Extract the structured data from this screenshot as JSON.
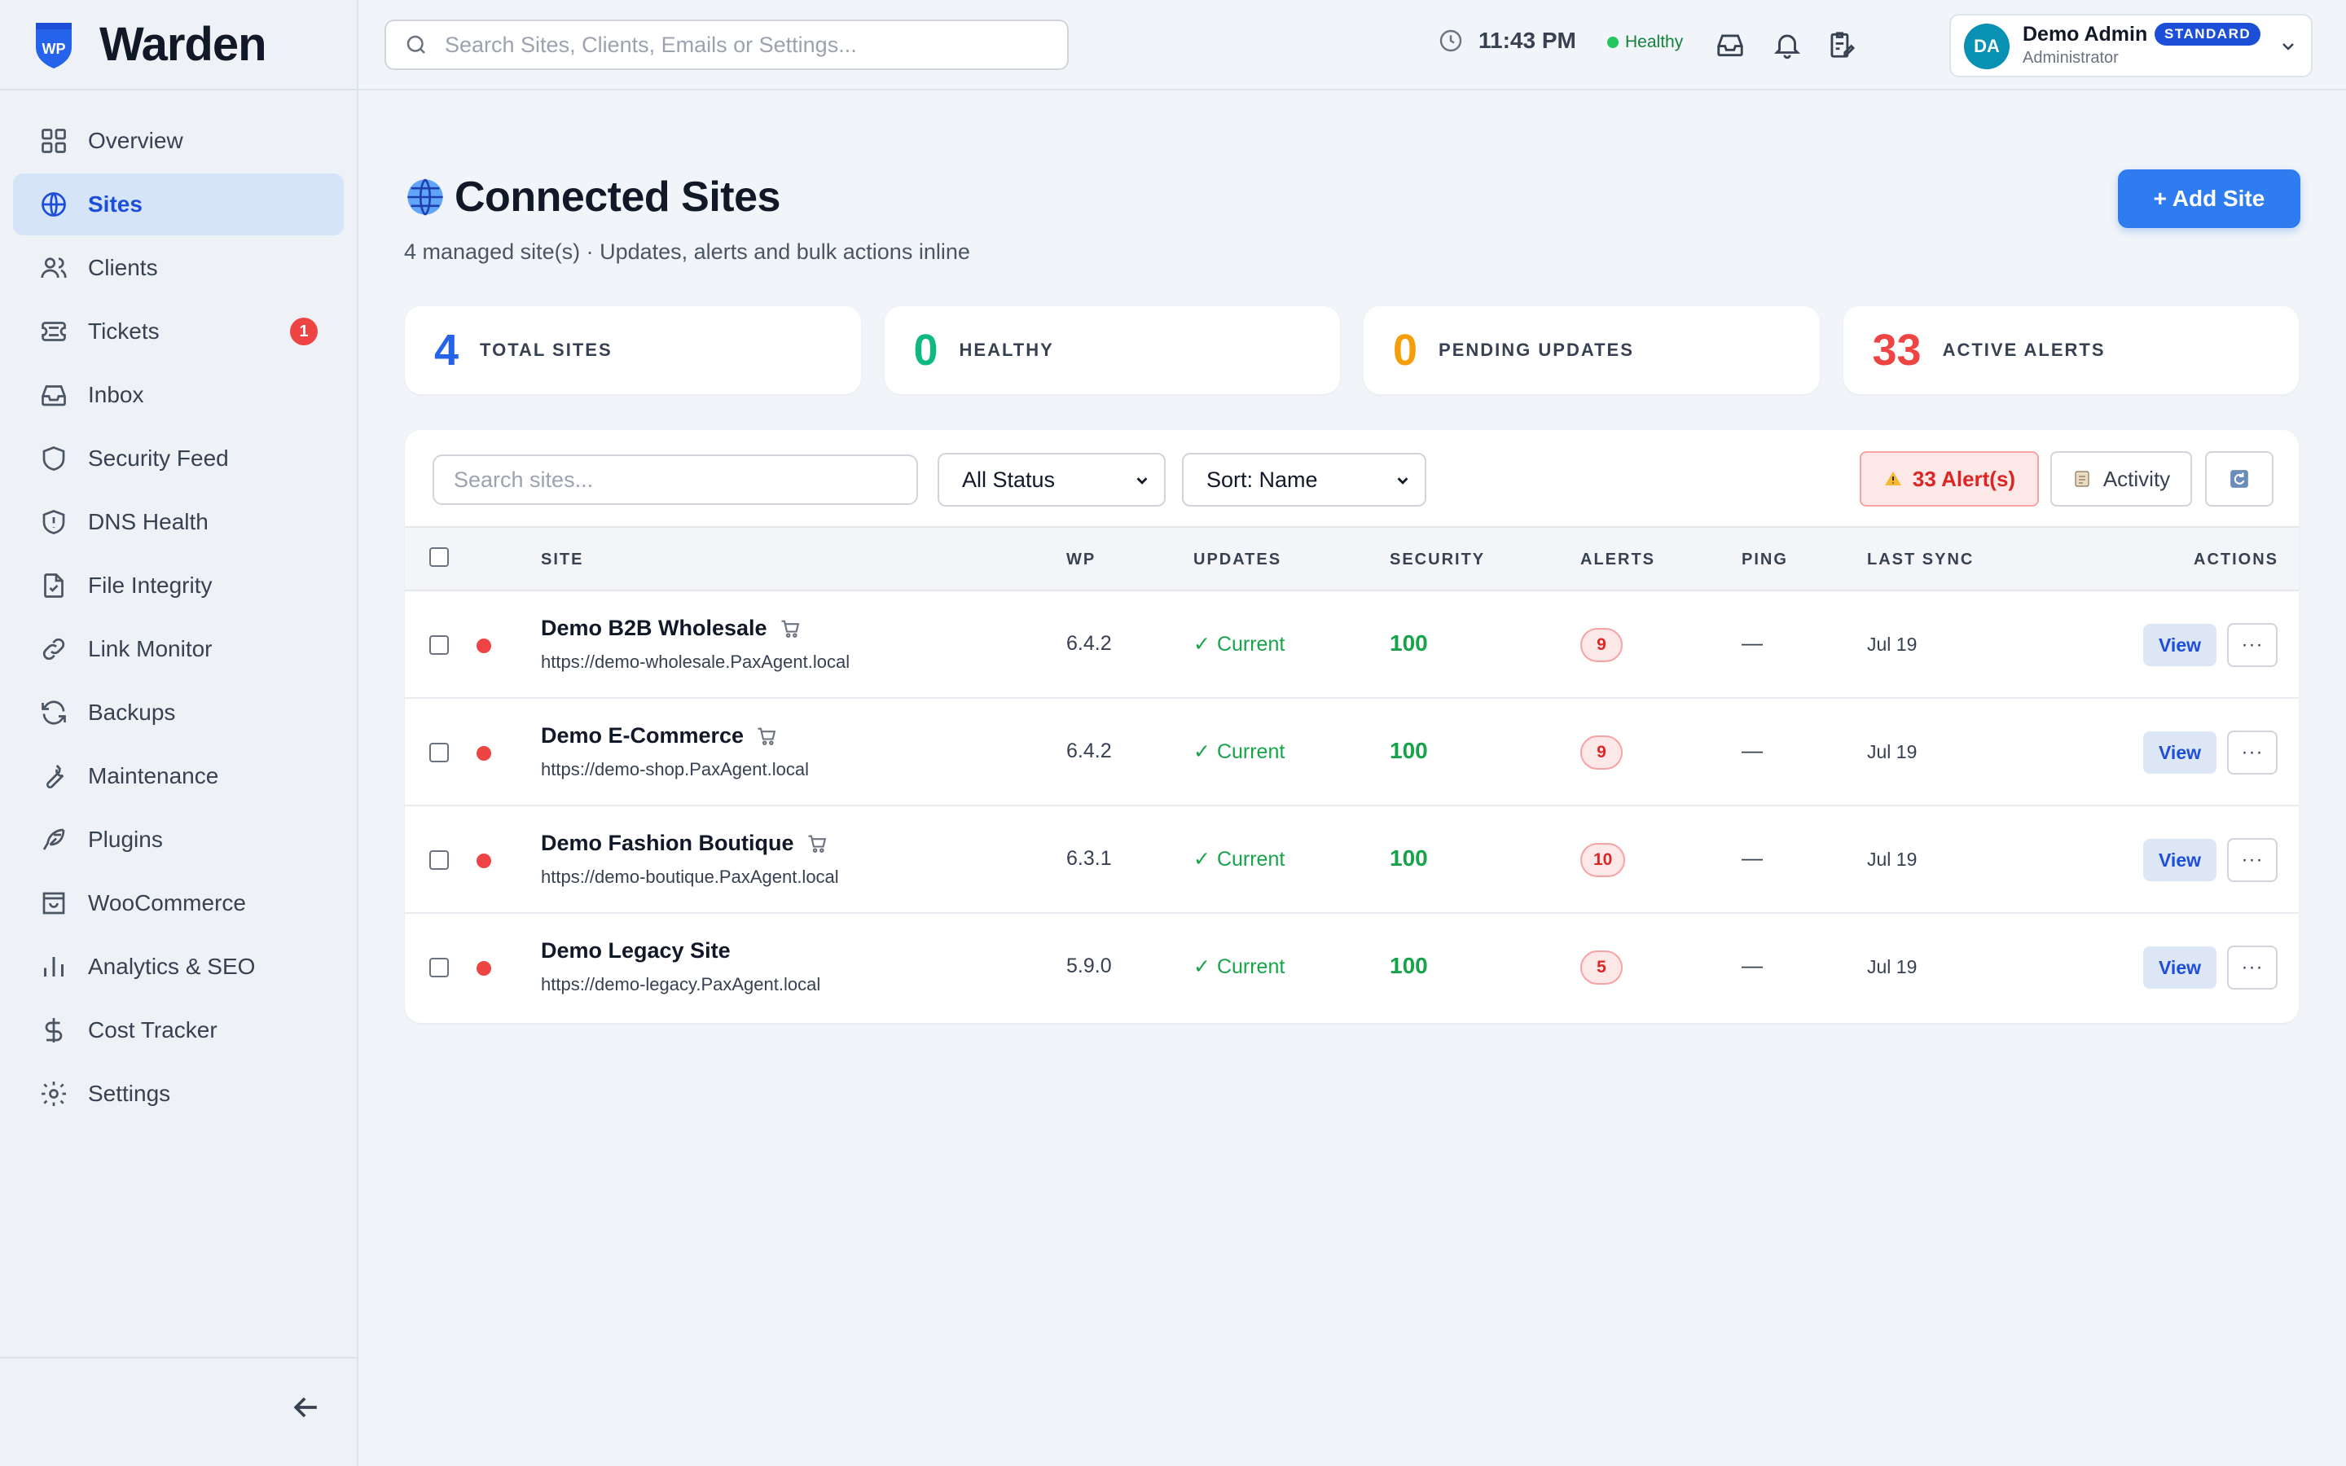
{
  "brand": {
    "name": "Warden",
    "logo_text": "WP"
  },
  "sidebar": {
    "items": [
      {
        "label": "Overview",
        "icon": "grid-icon",
        "active": false
      },
      {
        "label": "Sites",
        "icon": "globe-icon",
        "active": true
      },
      {
        "label": "Clients",
        "icon": "users-icon",
        "active": false
      },
      {
        "label": "Tickets",
        "icon": "ticket-icon",
        "active": false,
        "badge": "1"
      },
      {
        "label": "Inbox",
        "icon": "inbox-icon",
        "active": false
      },
      {
        "label": "Security Feed",
        "icon": "shield-icon",
        "active": false
      },
      {
        "label": "DNS Health",
        "icon": "shield-alert-icon",
        "active": false
      },
      {
        "label": "File Integrity",
        "icon": "file-check-icon",
        "active": false
      },
      {
        "label": "Link Monitor",
        "icon": "link-icon",
        "active": false
      },
      {
        "label": "Backups",
        "icon": "refresh-icon",
        "active": false
      },
      {
        "label": "Maintenance",
        "icon": "wrench-icon",
        "active": false
      },
      {
        "label": "Plugins",
        "icon": "feather-icon",
        "active": false
      },
      {
        "label": "WooCommerce",
        "icon": "store-icon",
        "active": false
      },
      {
        "label": "Analytics & SEO",
        "icon": "bar-chart-icon",
        "active": false
      },
      {
        "label": "Cost Tracker",
        "icon": "dollar-icon",
        "active": false
      },
      {
        "label": "Settings",
        "icon": "gear-icon",
        "active": false
      }
    ]
  },
  "topbar": {
    "search_placeholder": "Search Sites, Clients, Emails or Settings...",
    "time": "11:43 PM",
    "health": "Healthy",
    "user": {
      "initials": "DA",
      "name": "Demo Admin",
      "role": "Administrator",
      "plan": "STANDARD"
    }
  },
  "page": {
    "title": "Connected Sites",
    "subtitle": "4 managed site(s) · Updates, alerts and bulk actions inline",
    "add_button": "+ Add Site"
  },
  "stats": [
    {
      "value": "4",
      "label": "TOTAL SITES",
      "color": "#2563eb"
    },
    {
      "value": "0",
      "label": "HEALTHY",
      "color": "#10b981"
    },
    {
      "value": "0",
      "label": "PENDING UPDATES",
      "color": "#f59e0b"
    },
    {
      "value": "33",
      "label": "ACTIVE ALERTS",
      "color": "#ef4444"
    }
  ],
  "toolbar": {
    "search_placeholder": "Search sites...",
    "status_filter": "All Status",
    "sort": "Sort: Name",
    "alerts_button": "33 Alert(s)",
    "activity_button": "Activity"
  },
  "table": {
    "headers": [
      "SITE",
      "WP",
      "UPDATES",
      "SECURITY",
      "ALERTS",
      "PING",
      "LAST SYNC",
      "ACTIONS"
    ],
    "rows": [
      {
        "name": "Demo B2B Wholesale",
        "shop": true,
        "url": "https://demo-wholesale.PaxAgent.local",
        "wp": "6.4.2",
        "updates": "Current",
        "security": "100",
        "alerts": "9",
        "ping": "—",
        "last_sync": "Jul 19",
        "view": "View"
      },
      {
        "name": "Demo E-Commerce",
        "shop": true,
        "url": "https://demo-shop.PaxAgent.local",
        "wp": "6.4.2",
        "updates": "Current",
        "security": "100",
        "alerts": "9",
        "ping": "—",
        "last_sync": "Jul 19",
        "view": "View"
      },
      {
        "name": "Demo Fashion Boutique",
        "shop": true,
        "url": "https://demo-boutique.PaxAgent.local",
        "wp": "6.3.1",
        "updates": "Current",
        "security": "100",
        "alerts": "10",
        "ping": "—",
        "last_sync": "Jul 19",
        "view": "View"
      },
      {
        "name": "Demo Legacy Site",
        "shop": false,
        "url": "https://demo-legacy.PaxAgent.local",
        "wp": "5.9.0",
        "updates": "Current",
        "security": "100",
        "alerts": "5",
        "ping": "—",
        "last_sync": "Jul 19",
        "view": "View"
      }
    ]
  },
  "colors": {
    "accent": "#2f7cf0",
    "danger": "#ef4444",
    "success": "#16a34a"
  }
}
